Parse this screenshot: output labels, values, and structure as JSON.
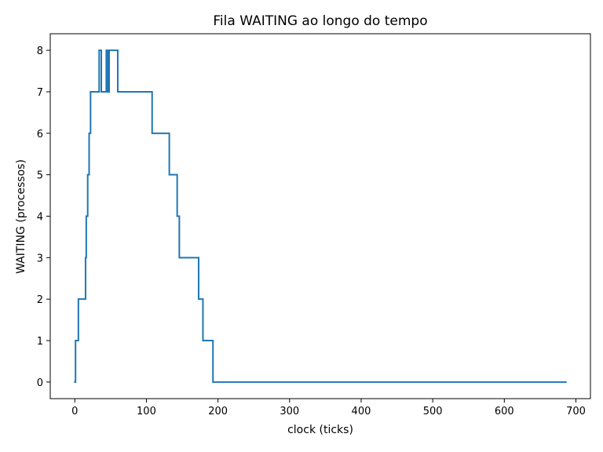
{
  "chart_data": {
    "type": "line",
    "title": "Fila WAITING ao longo do tempo",
    "xlabel": "clock (ticks)",
    "ylabel": "WAITING (processos)",
    "xlim": [
      -34.3,
      720.3
    ],
    "ylim": [
      -0.4,
      8.4
    ],
    "xticks": [
      0,
      100,
      200,
      300,
      400,
      500,
      600,
      700
    ],
    "yticks": [
      0,
      1,
      2,
      3,
      4,
      5,
      6,
      7,
      8
    ],
    "grid": false,
    "series": [
      {
        "color": "#1f77b4",
        "x": [
          0,
          1,
          1,
          5,
          5,
          15,
          15,
          16,
          16,
          18,
          18,
          20,
          20,
          22,
          22,
          24,
          24,
          34,
          34,
          37,
          37,
          44,
          44,
          46,
          46,
          48,
          48,
          60,
          60,
          108,
          108,
          132,
          132,
          143,
          143,
          146,
          146,
          173,
          173,
          179,
          179,
          193,
          193,
          686
        ],
        "y": [
          0,
          0,
          1,
          1,
          2,
          2,
          3,
          3,
          4,
          4,
          5,
          5,
          6,
          6,
          7,
          7,
          7,
          7,
          8,
          8,
          7,
          7,
          8,
          8,
          7,
          7,
          8,
          8,
          7,
          7,
          6,
          6,
          5,
          5,
          4,
          4,
          3,
          3,
          2,
          2,
          1,
          1,
          0,
          0
        ]
      }
    ]
  }
}
